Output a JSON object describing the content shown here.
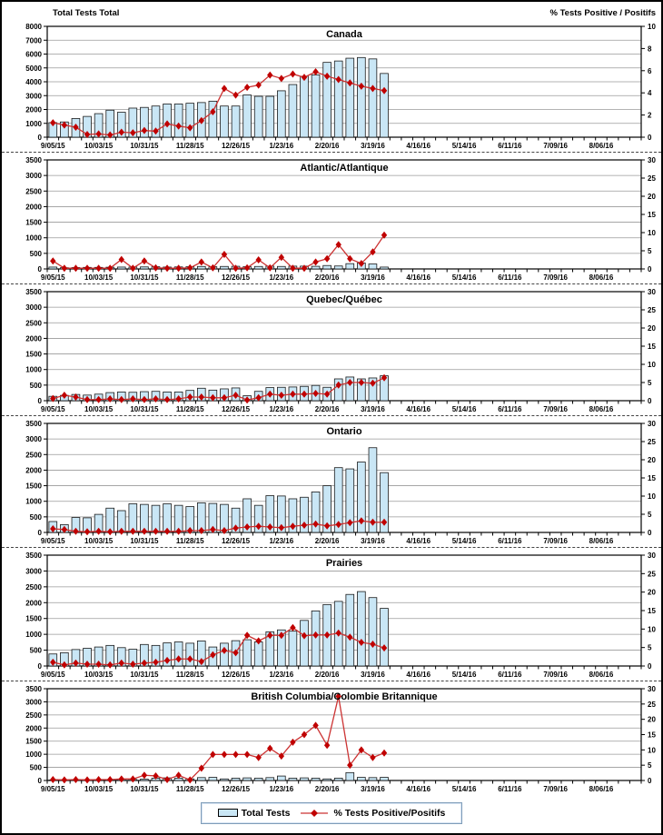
{
  "figure": {
    "left_axis_title": "Total Tests Total",
    "right_axis_title": "% Tests Positive / Positifs",
    "legend": {
      "bar_label": "Total Tests",
      "line_label": "% Tests Positive/Positifs"
    },
    "colors": {
      "bar_fill": "#c9e6f5",
      "bar_stroke": "#1a1a1a",
      "line": "#cc3333",
      "marker": "#c00000",
      "grid": "#9a9a9a",
      "axis": "#000000",
      "text": "#000000"
    }
  },
  "chart_data": [
    {
      "type": "bar+line",
      "title": "Canada",
      "weeks": 52,
      "x_tick_labels": [
        "9/05/15",
        "10/03/15",
        "10/31/15",
        "11/28/15",
        "12/26/15",
        "1/23/16",
        "2/20/16",
        "3/19/16",
        "4/16/16",
        "5/14/16",
        "6/11/16",
        "7/09/16",
        "8/06/16"
      ],
      "left_axis": {
        "min": 0,
        "max": 8000,
        "step": 1000
      },
      "right_axis": {
        "min": 0,
        "max": 10,
        "step": 2
      },
      "series": [
        {
          "name": "Total Tests",
          "type": "bar",
          "axis": "left",
          "values": [
            1050,
            1100,
            1350,
            1500,
            1700,
            1950,
            1800,
            2100,
            2150,
            2250,
            2400,
            2400,
            2450,
            2500,
            2600,
            2250,
            2250,
            3050,
            2950,
            2950,
            3350,
            3800,
            4400,
            4500,
            5400,
            5500,
            5700,
            5750,
            5650,
            4600
          ]
        },
        {
          "name": "% Tests Positive/Positifs",
          "type": "line",
          "axis": "right",
          "values": [
            1.3,
            1.1,
            0.9,
            0.25,
            0.3,
            0.2,
            0.45,
            0.4,
            0.6,
            0.55,
            1.2,
            1.0,
            0.85,
            1.5,
            2.3,
            4.4,
            3.8,
            4.5,
            4.7,
            5.6,
            5.3,
            5.7,
            5.4,
            5.9,
            5.5,
            5.2,
            4.9,
            4.6,
            4.4,
            4.2
          ]
        }
      ]
    },
    {
      "type": "bar+line",
      "title": "Atlantic/Atlantique",
      "weeks": 52,
      "x_tick_labels": [
        "9/05/15",
        "10/03/15",
        "10/31/15",
        "11/28/15",
        "12/26/15",
        "1/23/16",
        "2/20/16",
        "3/19/16",
        "4/16/16",
        "5/14/16",
        "6/11/16",
        "7/09/16",
        "8/06/16"
      ],
      "left_axis": {
        "min": 0,
        "max": 3500,
        "step": 500
      },
      "right_axis": {
        "min": 0,
        "max": 30,
        "step": 5
      },
      "series": [
        {
          "name": "Total Tests",
          "type": "bar",
          "axis": "left",
          "values": [
            60,
            40,
            45,
            50,
            50,
            55,
            60,
            60,
            65,
            70,
            60,
            65,
            70,
            80,
            70,
            80,
            85,
            70,
            80,
            90,
            80,
            90,
            90,
            85,
            110,
            95,
            170,
            190,
            160,
            60
          ]
        },
        {
          "name": "% Tests Positive/Positifs",
          "type": "line",
          "axis": "right",
          "values": [
            2.2,
            0.2,
            0.2,
            0.2,
            0.2,
            0.2,
            2.6,
            0.2,
            2.2,
            0.3,
            0.2,
            0.2,
            0.3,
            1.9,
            0.3,
            4.0,
            0.2,
            0.3,
            2.5,
            0.3,
            3.2,
            0.2,
            0.2,
            1.9,
            2.8,
            6.7,
            2.8,
            1.5,
            4.7,
            9.3
          ]
        }
      ]
    },
    {
      "type": "bar+line",
      "title": "Quebec/Québec",
      "weeks": 52,
      "x_tick_labels": [
        "9/05/15",
        "10/03/15",
        "10/31/15",
        "11/28/15",
        "12/26/15",
        "1/23/16",
        "2/20/16",
        "3/19/16",
        "4/16/16",
        "5/14/16",
        "6/11/16",
        "7/09/16",
        "8/06/16"
      ],
      "left_axis": {
        "min": 0,
        "max": 3500,
        "step": 500
      },
      "right_axis": {
        "min": 0,
        "max": 30,
        "step": 5
      },
      "series": [
        {
          "name": "Total Tests",
          "type": "bar",
          "axis": "left",
          "values": [
            140,
            170,
            200,
            180,
            210,
            260,
            280,
            270,
            290,
            300,
            280,
            280,
            330,
            400,
            340,
            380,
            410,
            160,
            300,
            420,
            430,
            440,
            460,
            490,
            430,
            700,
            760,
            700,
            730,
            800
          ]
        },
        {
          "name": "% Tests Positive/Positifs",
          "type": "line",
          "axis": "right",
          "values": [
            0.6,
            1.5,
            1.0,
            0.3,
            0.3,
            0.5,
            0.3,
            0.5,
            0.3,
            0.5,
            0.3,
            0.5,
            1.0,
            1.0,
            0.8,
            0.8,
            1.5,
            0.2,
            0.8,
            1.8,
            1.5,
            1.8,
            1.8,
            2.0,
            1.8,
            4.3,
            5.0,
            5.0,
            4.8,
            6.3
          ]
        }
      ]
    },
    {
      "type": "bar+line",
      "title": "Ontario",
      "weeks": 52,
      "x_tick_labels": [
        "9/05/15",
        "10/03/15",
        "10/31/15",
        "11/28/15",
        "12/26/15",
        "1/23/16",
        "2/20/16",
        "3/19/16",
        "4/16/16",
        "5/14/16",
        "6/11/16",
        "7/09/16",
        "8/06/16"
      ],
      "left_axis": {
        "min": 0,
        "max": 3500,
        "step": 500
      },
      "right_axis": {
        "min": 0,
        "max": 30,
        "step": 5
      },
      "series": [
        {
          "name": "Total Tests",
          "type": "bar",
          "axis": "left",
          "values": [
            350,
            250,
            480,
            470,
            580,
            780,
            700,
            920,
            900,
            870,
            920,
            870,
            830,
            950,
            930,
            900,
            780,
            1080,
            870,
            1180,
            1170,
            1080,
            1130,
            1300,
            1500,
            2080,
            2040,
            2260,
            2720,
            1920
          ]
        },
        {
          "name": "% Tests Positive/Positifs",
          "type": "line",
          "axis": "right",
          "values": [
            1.0,
            0.8,
            0.3,
            0.2,
            0.3,
            0.2,
            0.3,
            0.3,
            0.3,
            0.3,
            0.3,
            0.3,
            0.5,
            0.5,
            0.8,
            0.5,
            1.2,
            1.5,
            1.7,
            1.5,
            1.3,
            1.7,
            2.0,
            2.3,
            1.8,
            2.2,
            2.7,
            3.2,
            2.8,
            2.8
          ]
        }
      ]
    },
    {
      "type": "bar+line",
      "title": "Prairies",
      "weeks": 52,
      "x_tick_labels": [
        "9/05/15",
        "10/03/15",
        "10/31/15",
        "11/28/15",
        "12/26/15",
        "1/23/16",
        "2/20/16",
        "3/19/16",
        "4/16/16",
        "5/14/16",
        "6/11/16",
        "7/09/16",
        "8/06/16"
      ],
      "left_axis": {
        "min": 0,
        "max": 3500,
        "step": 500
      },
      "right_axis": {
        "min": 0,
        "max": 30,
        "step": 5
      },
      "series": [
        {
          "name": "Total Tests",
          "type": "bar",
          "axis": "left",
          "values": [
            380,
            420,
            520,
            560,
            600,
            650,
            580,
            530,
            680,
            650,
            730,
            760,
            720,
            790,
            600,
            720,
            800,
            830,
            760,
            1080,
            1140,
            1100,
            1440,
            1740,
            1940,
            2040,
            2260,
            2350,
            2160,
            1820
          ]
        },
        {
          "name": "% Tests Positive/Positifs",
          "type": "line",
          "axis": "right",
          "values": [
            1.0,
            0.3,
            0.8,
            0.5,
            0.5,
            0.3,
            0.8,
            0.5,
            0.8,
            1.0,
            1.5,
            1.9,
            1.9,
            1.2,
            3.0,
            4.2,
            3.6,
            8.3,
            6.8,
            8.3,
            8.3,
            10.4,
            8.2,
            8.4,
            8.4,
            8.9,
            7.8,
            6.4,
            5.9,
            4.9
          ]
        }
      ]
    },
    {
      "type": "bar+line",
      "title": "British Columbia/Colombie Britannique",
      "weeks": 52,
      "x_tick_labels": [
        "9/05/15",
        "10/03/15",
        "10/31/15",
        "11/28/15",
        "12/26/15",
        "1/23/16",
        "2/20/16",
        "3/19/16",
        "4/16/16",
        "5/14/16",
        "6/11/16",
        "7/09/16",
        "8/06/16"
      ],
      "left_axis": {
        "min": 0,
        "max": 3500,
        "step": 500
      },
      "right_axis": {
        "min": 0,
        "max": 30,
        "step": 5
      },
      "series": [
        {
          "name": "Total Tests",
          "type": "bar",
          "axis": "left",
          "values": [
            20,
            20,
            25,
            30,
            30,
            30,
            40,
            40,
            50,
            90,
            100,
            90,
            60,
            110,
            120,
            60,
            90,
            100,
            90,
            110,
            170,
            90,
            100,
            90,
            60,
            90,
            300,
            120,
            110,
            120
          ]
        },
        {
          "name": "% Tests Positive/Positifs",
          "type": "line",
          "axis": "right",
          "values": [
            0.3,
            0.2,
            0.3,
            0.2,
            0.3,
            0.3,
            0.5,
            0.5,
            1.7,
            1.5,
            0.3,
            1.7,
            0.2,
            4.0,
            8.5,
            8.5,
            8.5,
            8.5,
            7.5,
            10.5,
            8.0,
            12.5,
            15.0,
            18.0,
            11.5,
            27.5,
            5.0,
            10.0,
            7.5,
            9.0
          ]
        }
      ]
    }
  ]
}
